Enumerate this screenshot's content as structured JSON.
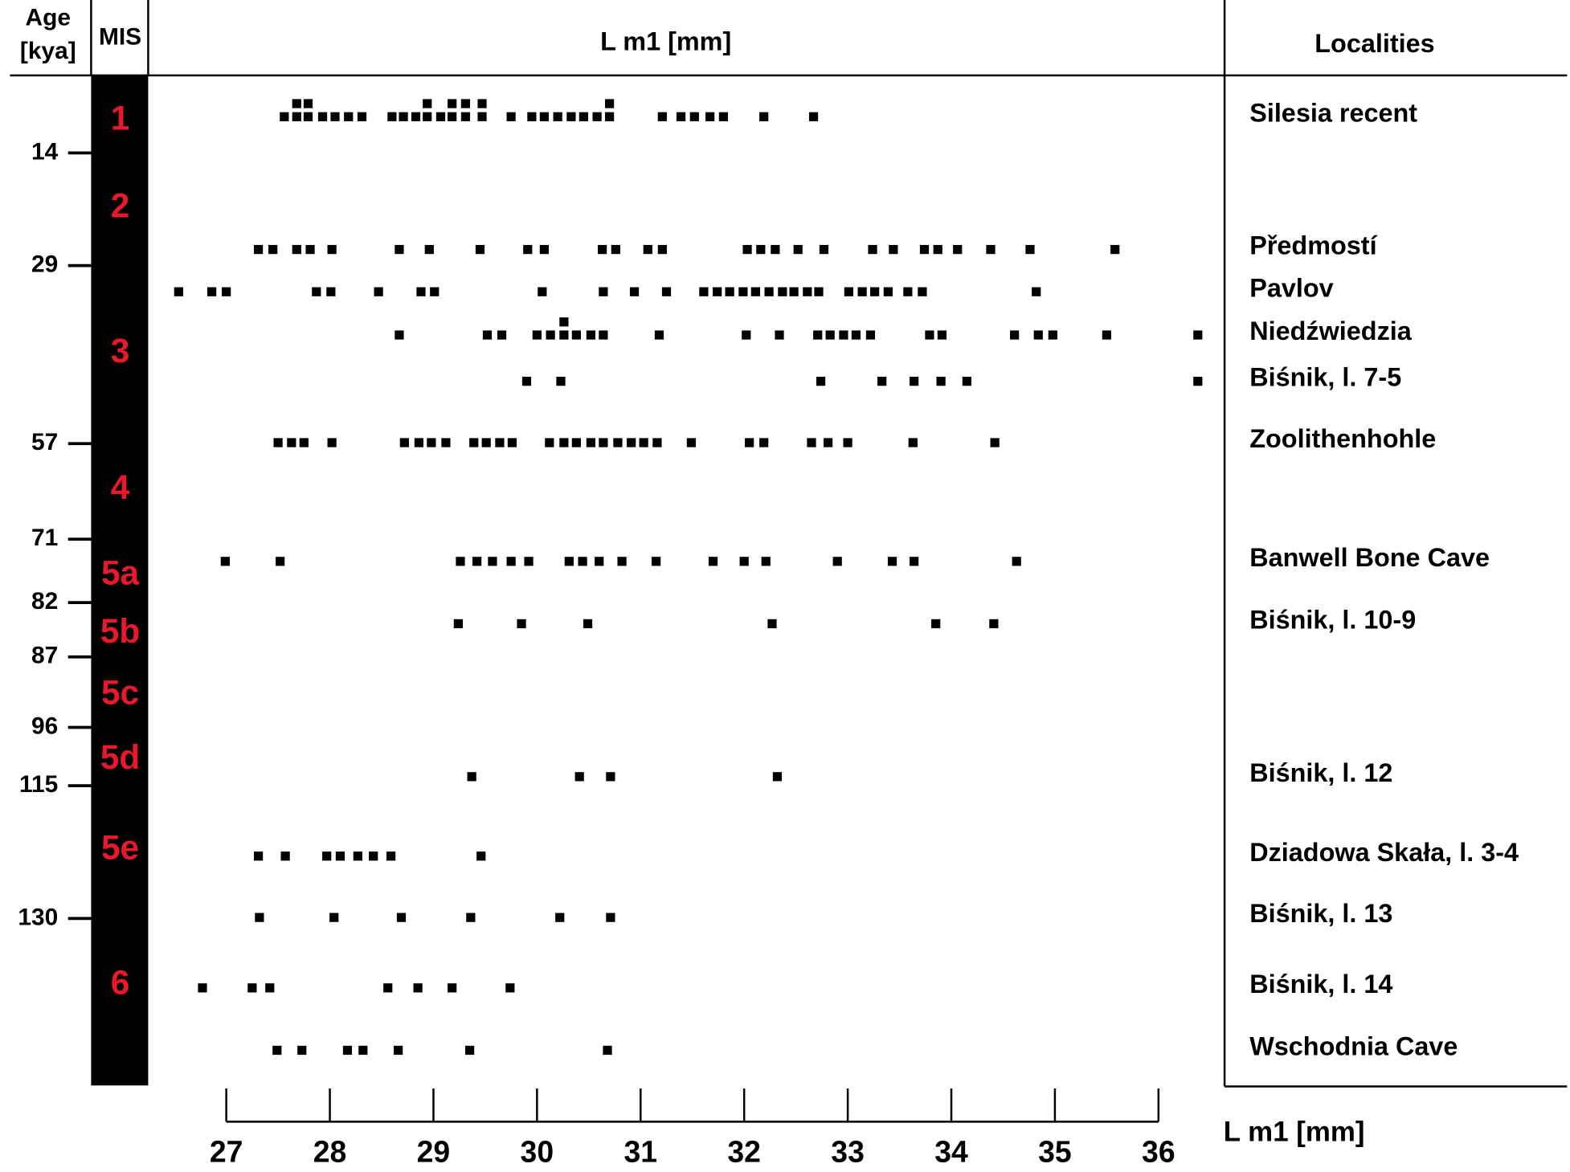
{
  "chart_data": {
    "type": "dotplot",
    "title": "L m1 [mm]",
    "x_label": "L m1 [mm]",
    "age_title": [
      "Age",
      "[kya]"
    ],
    "mis_title": "MIS",
    "localities_title": "Localities",
    "age_ticks": [
      14,
      29,
      57,
      71,
      82,
      87,
      96,
      115,
      130
    ],
    "mis_stages": [
      "1",
      "2",
      "3",
      "4",
      "5a",
      "5b",
      "5c",
      "5d",
      "5e",
      "6"
    ],
    "mis_color": "#e8192c",
    "color": "#000000",
    "xlim": [
      27,
      36
    ],
    "xticks": [
      27,
      28,
      29,
      30,
      31,
      32,
      33,
      34,
      35,
      36
    ],
    "categories": [
      "Silesia recent",
      "Předmostí",
      "Pavlov",
      "Niedźwiedzia",
      "Biśnik, l. 7-5",
      "Zoolithenhohle",
      "Banwell Bone Cave",
      "Biśnik, l. 10-9",
      "Biśnik, l. 12",
      "Dziadowa Skała, l. 3-4",
      "Biśnik, l. 13",
      "Biśnik, l. 14",
      "Wschodnia Cave"
    ],
    "values": [
      [
        27.56,
        27.68,
        27.79,
        27.93,
        28.05,
        28.18,
        28.31,
        28.6,
        28.71,
        28.83,
        28.94,
        29.07,
        29.18,
        29.31,
        29.47,
        29.75,
        29.95,
        30.07,
        30.2,
        30.33,
        30.45,
        30.58,
        30.7,
        31.21,
        31.39,
        31.52,
        31.67,
        31.8,
        32.19,
        32.67,
        27.68,
        27.79,
        28.94,
        29.18,
        29.31,
        29.47,
        30.7
      ],
      [
        27.31,
        27.45,
        27.68,
        27.81,
        28.02,
        28.67,
        28.96,
        29.45,
        29.91,
        30.07,
        30.63,
        30.76,
        31.07,
        31.21,
        32.03,
        32.16,
        32.3,
        32.52,
        32.77,
        33.24,
        33.44,
        33.74,
        33.87,
        34.06,
        34.38,
        34.76,
        35.58
      ],
      [
        26.54,
        26.86,
        27.0,
        27.87,
        28.01,
        28.47,
        28.88,
        29.01,
        30.05,
        30.64,
        30.94,
        31.25,
        31.61,
        31.74,
        31.86,
        31.99,
        32.11,
        32.24,
        32.37,
        32.48,
        32.61,
        32.72,
        33.01,
        33.14,
        33.26,
        33.39,
        33.58,
        33.72,
        34.82
      ],
      [
        28.67,
        29.52,
        29.66,
        30.0,
        30.13,
        30.26,
        30.38,
        30.52,
        30.64,
        31.18,
        32.02,
        32.34,
        32.71,
        32.83,
        32.96,
        33.08,
        33.22,
        33.79,
        33.91,
        34.61,
        34.84,
        34.98,
        35.5,
        36.38,
        30.26
      ],
      [
        29.9,
        30.23,
        32.74,
        33.33,
        33.64,
        33.9,
        34.15,
        36.38
      ],
      [
        27.5,
        27.63,
        27.75,
        28.02,
        28.72,
        28.86,
        28.98,
        29.12,
        29.39,
        29.51,
        29.64,
        29.76,
        30.12,
        30.26,
        30.38,
        30.52,
        30.64,
        30.78,
        30.91,
        31.03,
        31.16,
        31.49,
        32.05,
        32.19,
        32.65,
        32.81,
        33.0,
        33.63,
        34.42
      ],
      [
        26.99,
        27.52,
        29.26,
        29.42,
        29.57,
        29.75,
        29.92,
        30.31,
        30.44,
        30.6,
        30.82,
        31.15,
        31.7,
        32.0,
        32.21,
        32.9,
        33.43,
        33.64,
        34.63
      ],
      [
        29.24,
        29.85,
        30.49,
        32.27,
        33.85,
        34.41
      ],
      [
        29.37,
        30.41,
        30.71,
        32.32
      ],
      [
        27.31,
        27.57,
        27.97,
        28.1,
        28.27,
        28.42,
        28.59,
        29.46
      ],
      [
        27.32,
        28.04,
        28.69,
        29.36,
        30.22,
        30.71
      ],
      [
        26.77,
        27.25,
        27.42,
        28.56,
        28.85,
        29.18,
        29.74
      ],
      [
        27.49,
        27.73,
        28.17,
        28.32,
        28.66,
        29.35,
        30.68
      ]
    ]
  }
}
